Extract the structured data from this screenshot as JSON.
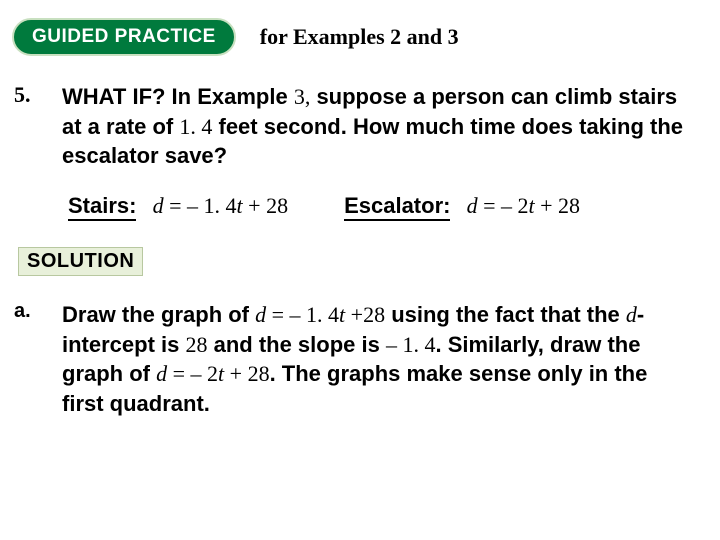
{
  "header": {
    "pill_label": "GUIDED PRACTICE",
    "subtitle": "for Examples 2 and 3",
    "pill_bg": "#007a3d",
    "pill_border": "#c8e0c0",
    "pill_text_color": "#ffffff"
  },
  "question": {
    "number": "5.",
    "lead": "WHAT IF? In Example ",
    "ex_num": "3,",
    "mid1": " suppose a person can climb stairs at a rate of ",
    "rate": "1. 4",
    "mid2": " feet second. How much time does taking the escalator save?"
  },
  "equations": {
    "stairs_label": "Stairs:",
    "stairs_formula_d": "d",
    "stairs_formula_eq": " = – 1. 4",
    "stairs_formula_t": "t",
    "stairs_formula_tail": " + 28",
    "escalator_label": "Escalator:",
    "escalator_formula_d": "d",
    "escalator_formula_eq": " = – 2",
    "escalator_formula_t": "t",
    "escalator_formula_tail": " + 28"
  },
  "solution_label": "SOLUTION",
  "solution_bg": "#e8f0da",
  "solution_border": "#b8c8a0",
  "answer": {
    "letter": "a.",
    "t1": "Draw the graph of ",
    "eq1_d": "d",
    "eq1_mid": " = – 1. 4",
    "eq1_t": "t ",
    "eq1_tail": "+28",
    "t2": " using the fact that the ",
    "dint": "d",
    "t3": "-intercept is ",
    "v28": "28",
    "t4": " and the slope is ",
    "slope": "– 1. 4",
    "t5": ". Similarly, draw the graph of ",
    "eq2_d": "d",
    "eq2_mid": " = – 2",
    "eq2_t": "t",
    "eq2_tail": " + 28",
    "t6": ". The graphs make sense only in the first quadrant."
  }
}
